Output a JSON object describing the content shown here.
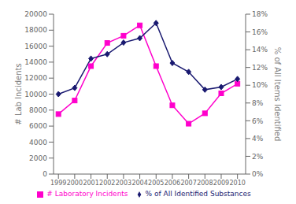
{
  "chart_data": {
    "type": "line",
    "x": [
      1999,
      2000,
      2001,
      2002,
      2003,
      2004,
      2005,
      2006,
      2007,
      2008,
      2009,
      2010
    ],
    "xlim": [
      1998.7,
      2010.5
    ],
    "xticks": [
      1999,
      2000,
      2001,
      2002,
      2003,
      2004,
      2005,
      2006,
      2007,
      2008,
      2009,
      2010
    ],
    "ylabel": "# Lab Incidents",
    "ylim": [
      0,
      20000
    ],
    "yticks": [
      0,
      2000,
      4000,
      6000,
      8000,
      10000,
      12000,
      14000,
      16000,
      18000,
      20000
    ],
    "y2label": "% of All Items Identified",
    "y2lim": [
      0,
      18
    ],
    "y2ticks": [
      {
        "value": 0,
        "label": "0%"
      },
      {
        "value": 2,
        "label": "2%"
      },
      {
        "value": 4,
        "label": "4%"
      },
      {
        "value": 6,
        "label": "6%"
      },
      {
        "value": 8,
        "label": "8%"
      },
      {
        "value": 10,
        "label": "10%"
      },
      {
        "value": 12,
        "label": "12%"
      },
      {
        "value": 14,
        "label": "14%"
      },
      {
        "value": 16,
        "label": "16%"
      },
      {
        "value": 18,
        "label": "18%"
      }
    ],
    "series": [
      {
        "name": "# Laboratory Incidents",
        "color": "#ff00cc",
        "marker": "square",
        "values": [
          7500,
          9200,
          13500,
          16400,
          17300,
          18600,
          13500,
          8600,
          6300,
          7600,
          10100,
          11300
        ]
      },
      {
        "name": "% of All Identified Substances",
        "color": "#191970",
        "marker": "diamond",
        "axis": "y2",
        "values": [
          9.0,
          9.7,
          13.0,
          13.5,
          14.8,
          15.3,
          17.0,
          12.5,
          11.5,
          9.5,
          9.8,
          10.7
        ]
      }
    ],
    "legend": "bottom",
    "grid": false
  }
}
